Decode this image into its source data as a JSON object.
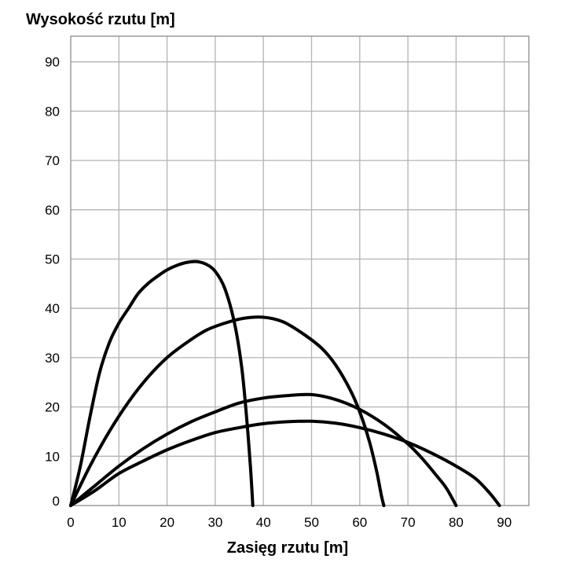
{
  "chart_data": {
    "type": "line",
    "title": "",
    "ylabel": "Wysokość rzutu [m]",
    "xlabel": "Zasięg rzutu [m]",
    "xlim": [
      0,
      95
    ],
    "ylim": [
      0,
      95
    ],
    "x_ticks": [
      "0",
      "10",
      "20",
      "30",
      "40",
      "50",
      "60",
      "70",
      "80",
      "90"
    ],
    "y_ticks": [
      "0",
      "10",
      "20",
      "30",
      "40",
      "50",
      "60",
      "70",
      "80",
      "90"
    ],
    "grid": true,
    "legend": "none",
    "series": [
      {
        "points": [
          [
            0,
            0
          ],
          [
            2,
            8
          ],
          [
            4,
            18
          ],
          [
            6,
            27
          ],
          [
            8,
            33
          ],
          [
            10,
            37
          ],
          [
            12,
            40
          ],
          [
            14,
            43
          ],
          [
            16,
            45
          ],
          [
            18,
            46.5
          ],
          [
            20,
            47.8
          ],
          [
            22,
            48.7
          ],
          [
            24,
            49.3
          ],
          [
            26,
            49.5
          ],
          [
            28,
            49
          ],
          [
            30,
            47.5
          ],
          [
            32,
            44
          ],
          [
            34,
            37
          ],
          [
            35.5,
            28
          ],
          [
            36.5,
            18
          ],
          [
            37.3,
            8
          ],
          [
            37.8,
            0
          ]
        ]
      },
      {
        "points": [
          [
            0,
            0
          ],
          [
            4,
            8
          ],
          [
            8,
            15
          ],
          [
            12,
            21
          ],
          [
            16,
            26
          ],
          [
            20,
            30
          ],
          [
            24,
            33
          ],
          [
            28,
            35.5
          ],
          [
            32,
            37
          ],
          [
            36,
            38
          ],
          [
            40,
            38.2
          ],
          [
            44,
            37.3
          ],
          [
            48,
            35
          ],
          [
            52,
            32
          ],
          [
            55,
            28.5
          ],
          [
            58,
            23.5
          ],
          [
            60,
            19
          ],
          [
            62,
            13
          ],
          [
            63.5,
            7
          ],
          [
            64.5,
            2
          ],
          [
            65,
            0
          ]
        ]
      },
      {
        "points": [
          [
            0,
            0
          ],
          [
            5,
            4
          ],
          [
            10,
            8
          ],
          [
            15,
            11.5
          ],
          [
            20,
            14.5
          ],
          [
            25,
            17
          ],
          [
            30,
            19
          ],
          [
            35,
            20.8
          ],
          [
            40,
            21.8
          ],
          [
            45,
            22.3
          ],
          [
            50,
            22.5
          ],
          [
            55,
            21.5
          ],
          [
            60,
            19.5
          ],
          [
            65,
            16.5
          ],
          [
            70,
            12.5
          ],
          [
            73,
            9.5
          ],
          [
            76,
            6
          ],
          [
            78,
            3.5
          ],
          [
            80,
            0
          ]
        ]
      },
      {
        "points": [
          [
            0,
            0
          ],
          [
            5,
            3
          ],
          [
            10,
            6.5
          ],
          [
            15,
            9
          ],
          [
            20,
            11.3
          ],
          [
            25,
            13.2
          ],
          [
            30,
            14.8
          ],
          [
            35,
            15.8
          ],
          [
            40,
            16.6
          ],
          [
            45,
            17
          ],
          [
            50,
            17.1
          ],
          [
            55,
            16.7
          ],
          [
            60,
            15.8
          ],
          [
            65,
            14.5
          ],
          [
            70,
            12.8
          ],
          [
            75,
            10.6
          ],
          [
            80,
            8
          ],
          [
            84,
            5.5
          ],
          [
            87,
            2.5
          ],
          [
            89,
            0
          ]
        ]
      }
    ]
  }
}
